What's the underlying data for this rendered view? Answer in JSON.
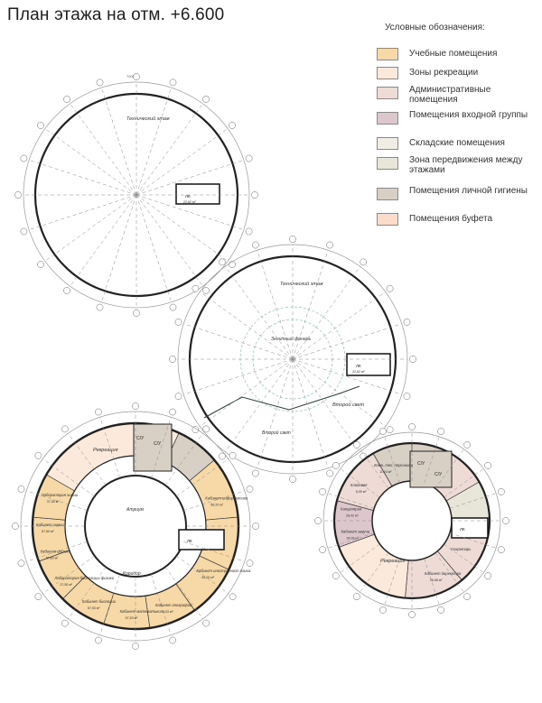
{
  "title": "План этажа на отм. +6.600",
  "legend": {
    "title": "Условные обозначения:",
    "items": [
      {
        "label": "Учебные помещения",
        "color": "#f6d9a6"
      },
      {
        "label": "Зоны рекреации",
        "color": "#fbe9dc"
      },
      {
        "label": "Административные помещения",
        "color": "#eedbd6"
      },
      {
        "label": "Помещения входной группы",
        "color": "#dcc7cd"
      },
      {
        "label": "Складские помещения",
        "color": "#f2ede4"
      },
      {
        "label": "Зона передвижения между этажами",
        "color": "#e8e6d8"
      },
      {
        "label": "Помещения личной гигиены",
        "color": "#d8d0c4"
      },
      {
        "label": "Помещения буфета",
        "color": "#fadcc8"
      }
    ]
  },
  "plans": {
    "tech_floor_1": {
      "label": "Технический этаж",
      "dim": "7200",
      "lk": "ЛК",
      "area": "22,62 м²"
    },
    "tech_floor_2": {
      "label": "Технический этаж",
      "second_light_1": "Второй свет",
      "second_light_2": "Второй свет",
      "lantern": "Зенитный фонарь",
      "lk": "ЛК",
      "area": "22,62 м²"
    },
    "classroom_floor": {
      "recreation": "Рекреация",
      "atrium": "Атриум",
      "corridor": "Коридор",
      "su": "С/У",
      "lk": "ЛК",
      "rooms": [
        {
          "label": "Лаборатория химии",
          "area": "37,55 м²"
        },
        {
          "label": "Кабинет химии",
          "area": "57,60 м²"
        },
        {
          "label": "Кабинет физики",
          "area": "57,60 м²"
        },
        {
          "label": "Лаборатория биологии и физики",
          "area": "37,55 м²"
        },
        {
          "label": "Кабинет биологии",
          "area": "57,53 м²"
        },
        {
          "label": "Кабинет математики",
          "area": "57,53 м²"
        },
        {
          "label": "Кабинет географии",
          "area": "56,53 м²"
        },
        {
          "label": "Кабинет иностранного языка",
          "area": "65,00 м²"
        },
        {
          "label": "Кабинет информатики",
          "area": "56,20 м²"
        }
      ]
    },
    "admin_floor": {
      "recreation": "Рекреация",
      "su": "С/У",
      "lk": "ЛК",
      "rooms": [
        {
          "label": "Комн. тех. персонала",
          "area": "11,04 м²"
        },
        {
          "label": "Кладовая",
          "area": "8,05 м²"
        },
        {
          "label": "Канцелярия",
          "area": "28,42 м²"
        },
        {
          "label": "Кабинет завуча",
          "area": "24,05 м²"
        },
        {
          "label": "Кабинет директора",
          "area": "26,58 м²"
        },
        {
          "label": "Секретарь",
          "area": ""
        }
      ]
    }
  }
}
